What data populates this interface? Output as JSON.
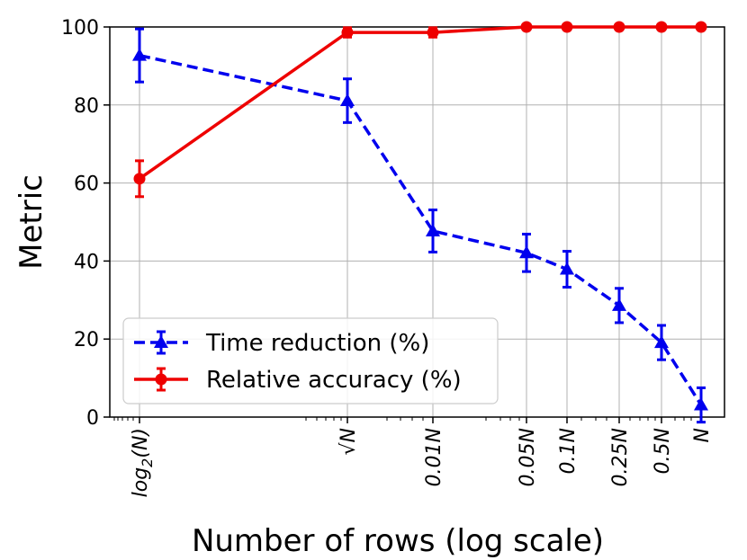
{
  "chart_data": {
    "type": "line",
    "xlabel": "Number of rows (log scale)",
    "ylabel": "Metric",
    "xscale": "log",
    "ylim": [
      0,
      100
    ],
    "y_ticks": [
      0,
      20,
      40,
      60,
      80,
      100
    ],
    "categories": [
      "log2(N)",
      "√N",
      "0.01N",
      "0.05N",
      "0.1N",
      "0.25N",
      "0.5N",
      "N"
    ],
    "x_tick_labels": [
      {
        "base": "log",
        "sub": "2",
        "tail": "(N)"
      },
      {
        "base": "√N",
        "sub": "",
        "tail": ""
      },
      {
        "base": "0.01N",
        "sub": "",
        "tail": ""
      },
      {
        "base": "0.05N",
        "sub": "",
        "tail": ""
      },
      {
        "base": "0.1N",
        "sub": "",
        "tail": ""
      },
      {
        "base": "0.25N",
        "sub": "",
        "tail": ""
      },
      {
        "base": "0.5N",
        "sub": "",
        "tail": ""
      },
      {
        "base": "N",
        "sub": "",
        "tail": ""
      }
    ],
    "grid": true,
    "legend_position": "lower-left",
    "series": [
      {
        "name": "Time reduction (%)",
        "color": "#0000ee",
        "linestyle": "dashed",
        "marker": "triangle",
        "values": [
          92.7,
          81.1,
          47.7,
          42.1,
          37.9,
          28.6,
          19.1,
          3.1
        ],
        "errors": [
          6.8,
          5.6,
          5.4,
          4.8,
          4.6,
          4.4,
          4.4,
          4.4
        ]
      },
      {
        "name": "Relative accuracy (%)",
        "color": "#ee0000",
        "linestyle": "solid",
        "marker": "circle",
        "values": [
          61.1,
          98.6,
          98.6,
          100.0,
          100.0,
          100.0,
          100.0,
          100.0
        ],
        "errors": [
          4.6,
          1.2,
          1.2,
          0,
          0,
          0,
          0,
          0
        ]
      }
    ]
  }
}
